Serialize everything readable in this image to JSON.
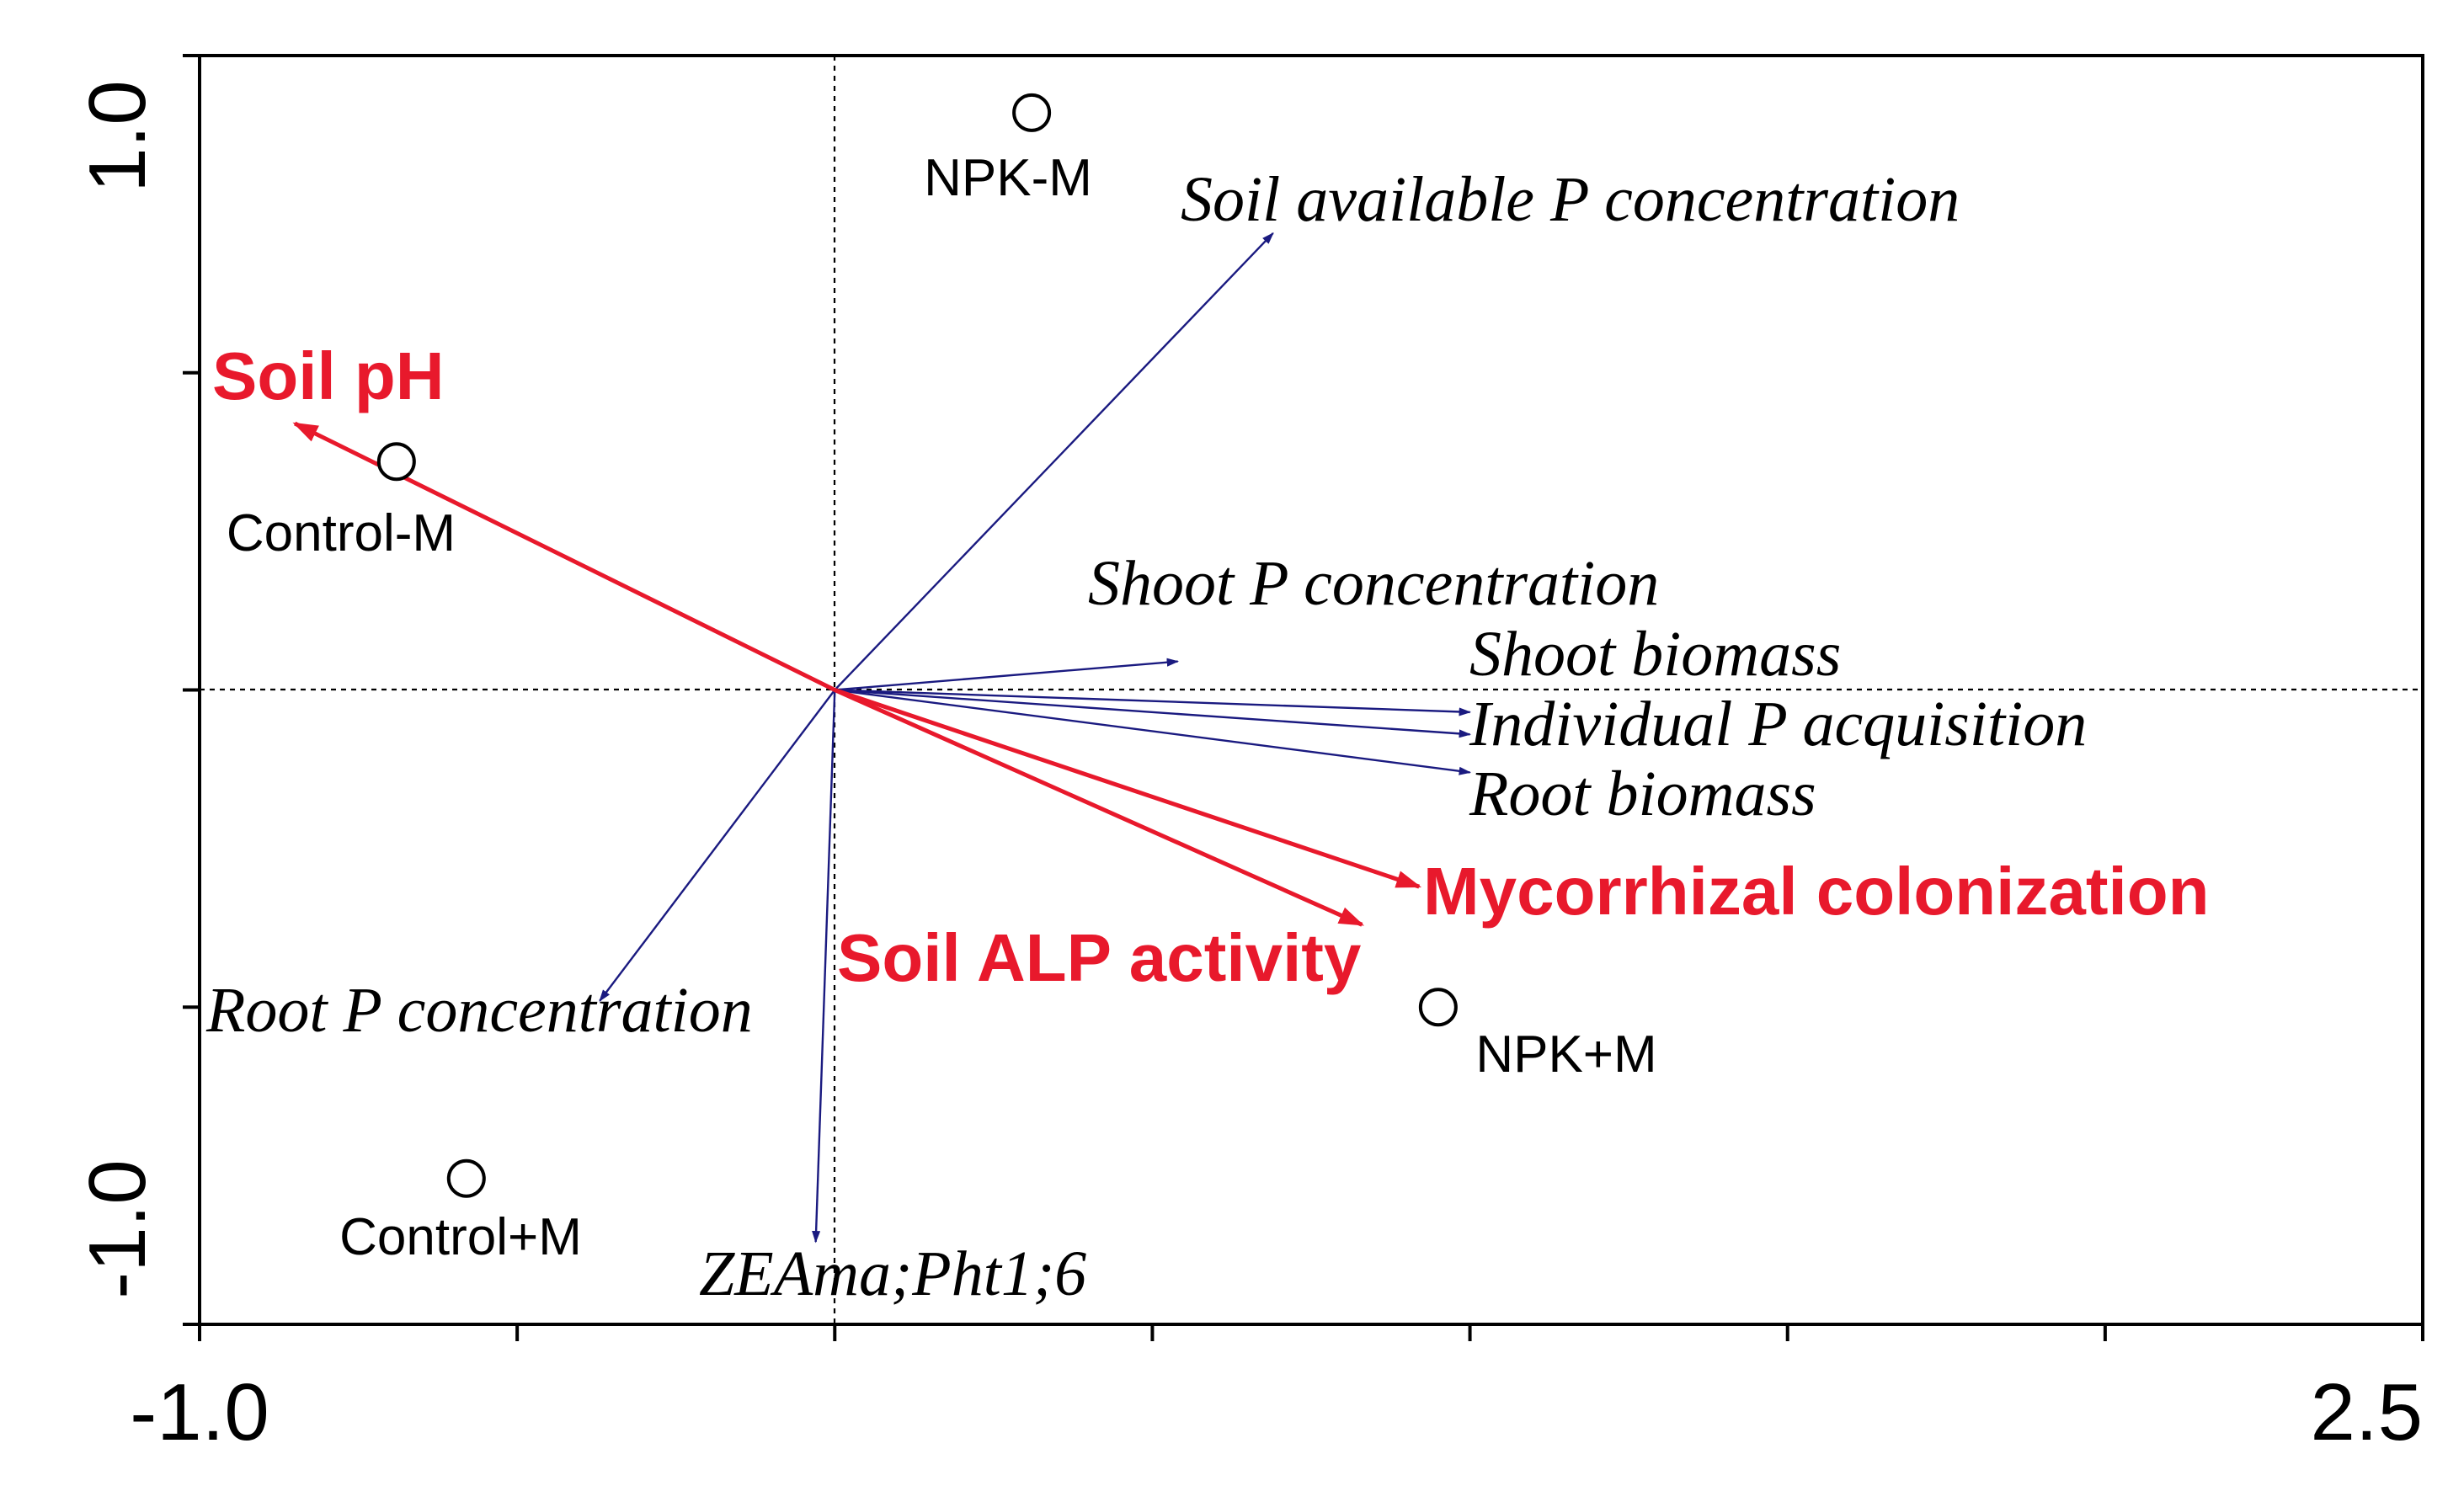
{
  "chart_data": {
    "type": "scatter",
    "title": "",
    "xlabel": "",
    "ylabel": "",
    "xlim": [
      -1.0,
      2.5
    ],
    "ylim": [
      -1.0,
      1.0
    ],
    "x_ticks": [
      -1.0,
      -0.5,
      0.0,
      0.5,
      1.0,
      1.5,
      2.0,
      2.5
    ],
    "y_ticks": [
      -1.0,
      -0.5,
      0.0,
      0.5,
      1.0
    ],
    "x_tick_labels": [
      {
        "value": -1.0,
        "label": "-1.0"
      },
      {
        "value": 2.5,
        "label": "2.5"
      }
    ],
    "y_tick_labels": [
      {
        "value": 1.0,
        "label": "1.0"
      },
      {
        "value": -1.0,
        "label": "-1.0"
      }
    ],
    "samples": [
      {
        "name": "NPK-M",
        "x": 0.31,
        "y": 0.91
      },
      {
        "name": "Control-M",
        "x": -0.69,
        "y": 0.36
      },
      {
        "name": "NPK+M",
        "x": 0.95,
        "y": -0.5
      },
      {
        "name": "Control+M",
        "x": -0.58,
        "y": -0.77
      }
    ],
    "response_vectors": [
      {
        "name": "Soil available P concentration",
        "x": 0.69,
        "y": 0.72
      },
      {
        "name": "Shoot P concentration",
        "x": 0.54,
        "y": 0.045
      },
      {
        "name": "Shoot biomass",
        "x": 1.0,
        "y": -0.035
      },
      {
        "name": "Individual P acquisition",
        "x": 1.0,
        "y": -0.07
      },
      {
        "name": "Root biomass",
        "x": 1.0,
        "y": -0.13
      },
      {
        "name": "Root P concentration",
        "x": -0.37,
        "y": -0.49
      },
      {
        "name": "ZEAma;Pht1;6",
        "x": -0.03,
        "y": -0.87
      }
    ],
    "explanatory_vectors": [
      {
        "name": "Soil pH",
        "x": -0.85,
        "y": 0.42
      },
      {
        "name": "Mycorrhizal colonization",
        "x": 0.92,
        "y": -0.31
      },
      {
        "name": "Soil ALP activity",
        "x": 0.83,
        "y": -0.37
      }
    ],
    "colors": {
      "response": "#1a1a80",
      "explanatory": "#e8192c",
      "axes": "#000000"
    }
  }
}
